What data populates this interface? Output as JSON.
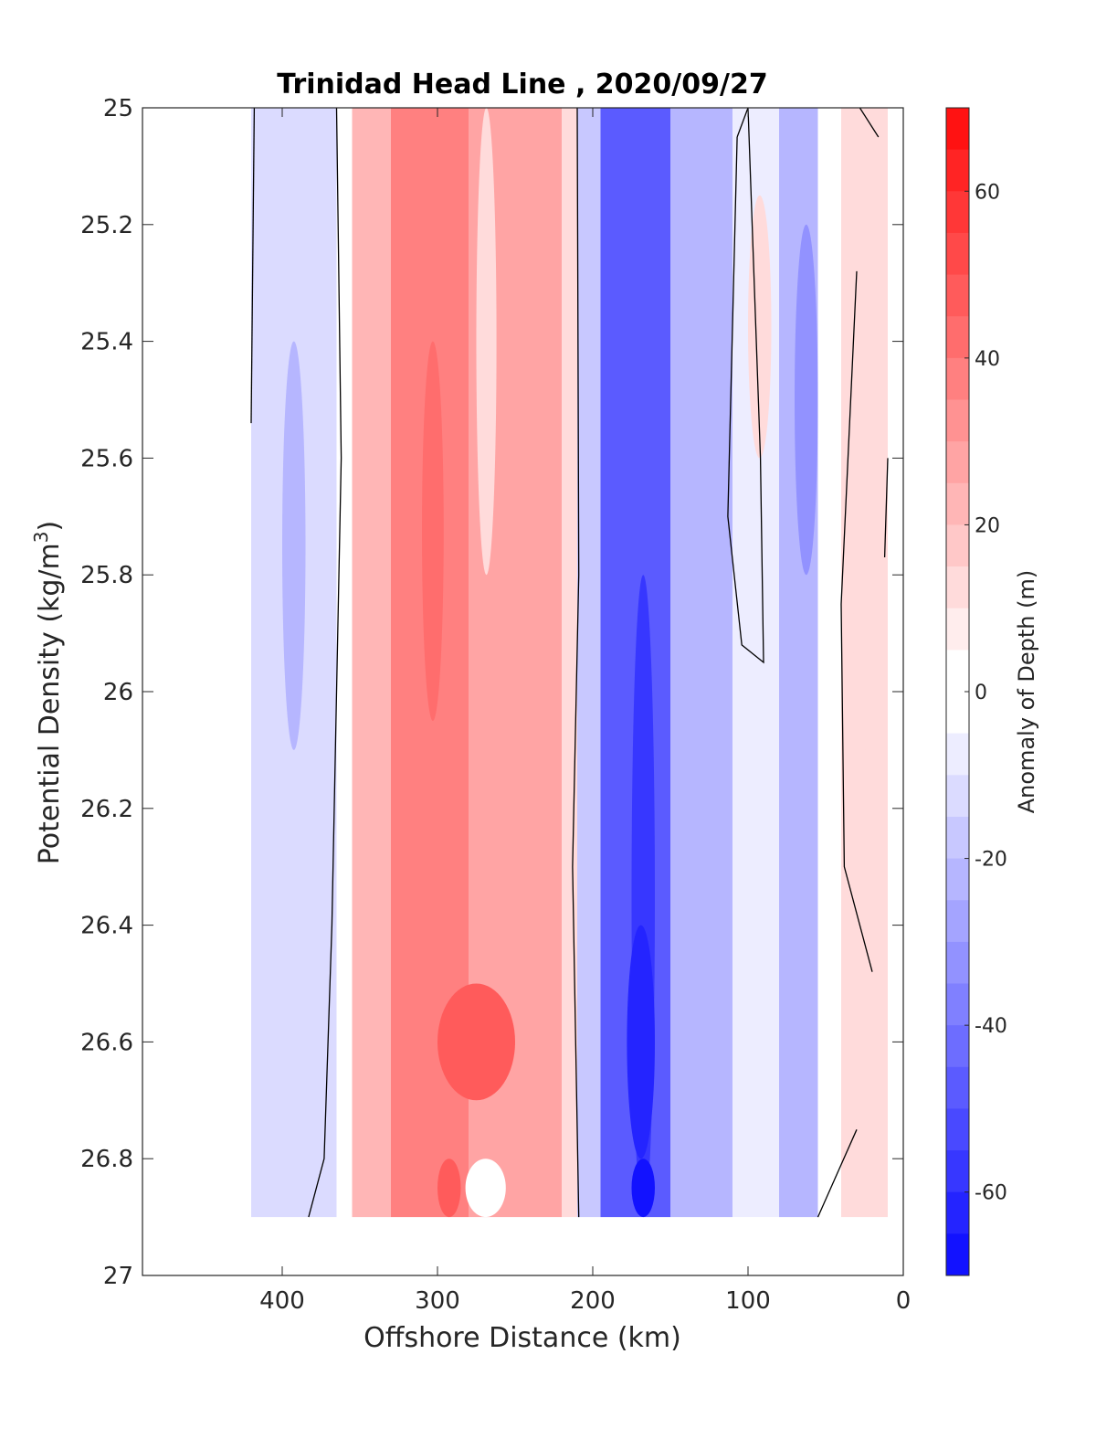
{
  "chart_data": {
    "type": "heatmap",
    "title": "Trinidad Head Line , 2020/09/27",
    "xlabel": "Offshore Distance (km)",
    "ylabel_main": "Potential Density (kg/m",
    "ylabel_sup": "3",
    "ylabel_close": ")",
    "xlim": [
      490,
      0
    ],
    "ylim": [
      25,
      27
    ],
    "x_reversed": true,
    "y_reversed": true,
    "x_ticks": [
      400,
      300,
      200,
      100,
      0
    ],
    "x_tick_labels": [
      "400",
      "300",
      "200",
      "100",
      "0"
    ],
    "y_ticks": [
      25,
      25.2,
      25.4,
      25.6,
      25.8,
      26,
      26.2,
      26.4,
      26.6,
      26.8,
      27
    ],
    "y_tick_labels": [
      "25",
      "25.2",
      "25.4",
      "25.6",
      "25.8",
      "26",
      "26.2",
      "26.4",
      "26.6",
      "26.8",
      "27"
    ],
    "data_x_range": [
      420,
      10
    ],
    "data_y_range": [
      25,
      26.9
    ],
    "colorbar": {
      "label": "Anomaly of Depth (m)",
      "range": [
        -70,
        70
      ],
      "step": 5,
      "ticks": [
        60,
        40,
        20,
        0,
        -20,
        -40,
        -60
      ],
      "tick_labels": [
        "60",
        "40",
        "20",
        "0",
        "-20",
        "-40",
        "-60"
      ],
      "colormap": "blue-white-red",
      "negative_color": "#0000ff",
      "positive_color": "#ff0000",
      "neutral_color": "#ffffff"
    },
    "zero_contour_color": "#000000",
    "bands": [
      {
        "x_from": 420,
        "x_to": 365,
        "anomaly": -8
      },
      {
        "x_from": 365,
        "x_to": 355,
        "anomaly": 0
      },
      {
        "x_from": 355,
        "x_to": 330,
        "anomaly": 20
      },
      {
        "x_from": 330,
        "x_to": 280,
        "anomaly": 35
      },
      {
        "x_from": 280,
        "x_to": 255,
        "anomaly": 25
      },
      {
        "x_from": 255,
        "x_to": 220,
        "anomaly": 25
      },
      {
        "x_from": 220,
        "x_to": 210,
        "anomaly": 8
      },
      {
        "x_from": 210,
        "x_to": 195,
        "anomaly": -15
      },
      {
        "x_from": 195,
        "x_to": 150,
        "anomaly": -45
      },
      {
        "x_from": 150,
        "x_to": 110,
        "anomaly": -20
      },
      {
        "x_from": 110,
        "x_to": 80,
        "anomaly": -5
      },
      {
        "x_from": 80,
        "x_to": 55,
        "anomaly": -20
      },
      {
        "x_from": 55,
        "x_to": 40,
        "anomaly": 0
      },
      {
        "x_from": 40,
        "x_to": 10,
        "anomaly": 8
      }
    ]
  }
}
